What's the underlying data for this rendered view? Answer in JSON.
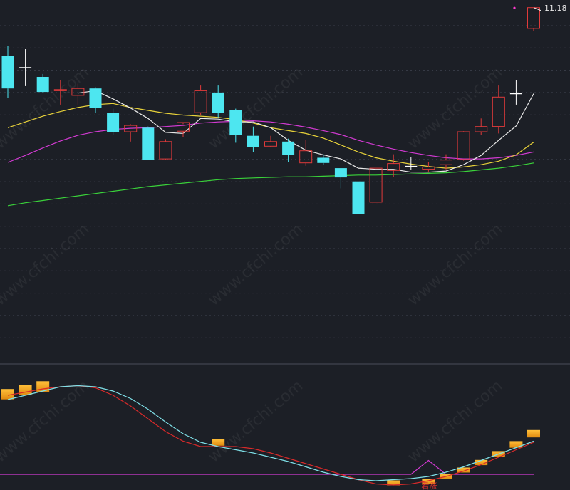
{
  "chart_data": [
    {
      "type": "candlestick",
      "panel": "price",
      "ylim": [
        6.6,
        11.25
      ],
      "last_price_label": "11.18",
      "watermark": "www.cfchi.com",
      "colors": {
        "up": "#e03a3a",
        "down": "#4de6f0",
        "doji": "#ffffff",
        "ma_white": "#e8e8e8",
        "ma_yellow": "#e8d23a",
        "ma_magenta": "#d23ad2",
        "ma_green": "#3ad23a",
        "grid": "#3a3e4a",
        "background": "#1c1f26"
      },
      "candles": [
        {
          "o": 10.35,
          "h": 10.52,
          "l": 9.61,
          "c": 9.78
        },
        {
          "o": 10.14,
          "h": 10.46,
          "l": 9.82,
          "c": 10.14
        },
        {
          "o": 9.98,
          "h": 10.03,
          "l": 9.7,
          "c": 9.72
        },
        {
          "o": 9.74,
          "h": 9.92,
          "l": 9.5,
          "c": 9.76
        },
        {
          "o": 9.66,
          "h": 9.86,
          "l": 9.5,
          "c": 9.78
        },
        {
          "o": 9.78,
          "h": 9.8,
          "l": 9.36,
          "c": 9.45
        },
        {
          "o": 9.36,
          "h": 9.43,
          "l": 8.97,
          "c": 9.02
        },
        {
          "o": 9.03,
          "h": 9.16,
          "l": 8.86,
          "c": 9.14
        },
        {
          "o": 9.1,
          "h": 9.12,
          "l": 8.54,
          "c": 8.54
        },
        {
          "o": 8.56,
          "h": 8.9,
          "l": 8.54,
          "c": 8.86
        },
        {
          "o": 9.04,
          "h": 9.16,
          "l": 8.94,
          "c": 9.19
        },
        {
          "o": 9.36,
          "h": 9.83,
          "l": 9.32,
          "c": 9.74
        },
        {
          "o": 9.71,
          "h": 9.83,
          "l": 9.28,
          "c": 9.36
        },
        {
          "o": 9.4,
          "h": 9.43,
          "l": 8.84,
          "c": 8.97
        },
        {
          "o": 8.96,
          "h": 9.12,
          "l": 8.68,
          "c": 8.77
        },
        {
          "o": 8.78,
          "h": 8.96,
          "l": 8.76,
          "c": 8.86
        },
        {
          "o": 8.86,
          "h": 8.91,
          "l": 8.5,
          "c": 8.63
        },
        {
          "o": 8.49,
          "h": 8.89,
          "l": 8.44,
          "c": 8.7
        },
        {
          "o": 8.58,
          "h": 8.64,
          "l": 8.45,
          "c": 8.49
        },
        {
          "o": 8.4,
          "h": 8.4,
          "l": 8.05,
          "c": 8.24
        },
        {
          "o": 8.17,
          "h": 8.17,
          "l": 7.6,
          "c": 7.6
        },
        {
          "o": 7.81,
          "h": 8.4,
          "l": 7.81,
          "c": 8.4
        },
        {
          "o": 8.36,
          "h": 8.64,
          "l": 8.24,
          "c": 8.48
        },
        {
          "o": 8.43,
          "h": 8.59,
          "l": 8.37,
          "c": 8.43
        },
        {
          "o": 8.38,
          "h": 8.51,
          "l": 8.34,
          "c": 8.42
        },
        {
          "o": 8.46,
          "h": 8.64,
          "l": 8.38,
          "c": 8.54
        },
        {
          "o": 8.55,
          "h": 9.04,
          "l": 8.53,
          "c": 9.03
        },
        {
          "o": 9.03,
          "h": 9.26,
          "l": 8.98,
          "c": 9.12
        },
        {
          "o": 9.12,
          "h": 9.83,
          "l": 9.0,
          "c": 9.63
        },
        {
          "o": 9.69,
          "h": 9.93,
          "l": 9.5,
          "c": 9.69
        },
        {
          "o": 10.82,
          "h": 11.18,
          "l": 10.77,
          "c": 11.18
        }
      ],
      "ma_white": [
        null,
        null,
        null,
        null,
        9.7,
        9.74,
        9.6,
        9.44,
        9.26,
        9.02,
        9.0,
        9.26,
        9.25,
        9.2,
        9.2,
        9.1,
        8.88,
        8.71,
        8.63,
        8.56,
        8.4,
        8.38,
        8.38,
        8.33,
        8.33,
        8.35,
        8.46,
        8.62,
        8.88,
        9.13,
        9.69
      ],
      "ma_yellow": [
        9.1,
        9.2,
        9.3,
        9.38,
        9.45,
        9.5,
        9.52,
        9.45,
        9.4,
        9.35,
        9.32,
        9.3,
        9.28,
        9.24,
        9.18,
        9.1,
        9.05,
        9.0,
        8.92,
        8.8,
        8.68,
        8.58,
        8.52,
        8.47,
        8.43,
        8.4,
        8.42,
        8.46,
        8.52,
        8.63,
        8.85
      ],
      "ma_magenta": [
        8.5,
        8.62,
        8.75,
        8.87,
        8.97,
        9.03,
        9.07,
        9.09,
        9.1,
        9.12,
        9.14,
        9.18,
        9.2,
        9.21,
        9.22,
        9.2,
        9.16,
        9.11,
        9.05,
        8.98,
        8.88,
        8.8,
        8.73,
        8.67,
        8.62,
        8.58,
        8.56,
        8.56,
        8.58,
        8.62,
        8.68
      ],
      "ma_green": [
        7.75,
        7.8,
        7.84,
        7.88,
        7.92,
        7.96,
        8.0,
        8.04,
        8.08,
        8.11,
        8.14,
        8.17,
        8.2,
        8.22,
        8.23,
        8.24,
        8.25,
        8.25,
        8.26,
        8.27,
        8.28,
        8.28,
        8.29,
        8.3,
        8.31,
        8.32,
        8.34,
        8.37,
        8.4,
        8.44,
        8.49
      ]
    },
    {
      "type": "indicator",
      "panel": "oscillator",
      "ylim": [
        0,
        100
      ],
      "signal_label": "看涨",
      "signal_index": 24,
      "colors": {
        "fast_line": "#7fe0e8",
        "slow_line": "#d82a2a",
        "baseline": "#d23ad2",
        "spike": "#d23ad2",
        "bar_light": "#ffc03a",
        "bar_dark": "#e08a10"
      },
      "baseline": 12,
      "spike": 25,
      "fast_line": [
        82,
        86,
        90,
        94,
        95,
        94,
        90,
        83,
        73,
        61,
        50,
        42,
        38,
        35,
        32,
        28,
        24,
        19,
        14,
        10,
        7,
        6,
        7,
        8,
        10,
        14,
        19,
        25,
        31,
        37,
        43
      ],
      "slow_line": [
        86,
        89,
        92,
        94,
        95,
        93,
        86,
        76,
        64,
        52,
        43,
        38,
        38,
        38,
        36,
        32,
        27,
        22,
        17,
        12,
        7,
        3,
        2,
        3,
        6,
        10,
        15,
        21,
        28,
        35,
        42
      ],
      "bars": [
        {
          "i": 0,
          "v": 87
        },
        {
          "i": 1,
          "v": 91
        },
        {
          "i": 2,
          "v": 94
        },
        {
          "i": 12,
          "v": 42
        },
        {
          "i": 22,
          "v": 4
        },
        {
          "i": 24,
          "v": 5
        },
        {
          "i": 25,
          "v": 10
        },
        {
          "i": 26,
          "v": 16
        },
        {
          "i": 27,
          "v": 23
        },
        {
          "i": 28,
          "v": 31
        },
        {
          "i": 29,
          "v": 40
        },
        {
          "i": 30,
          "v": 50
        }
      ]
    }
  ]
}
